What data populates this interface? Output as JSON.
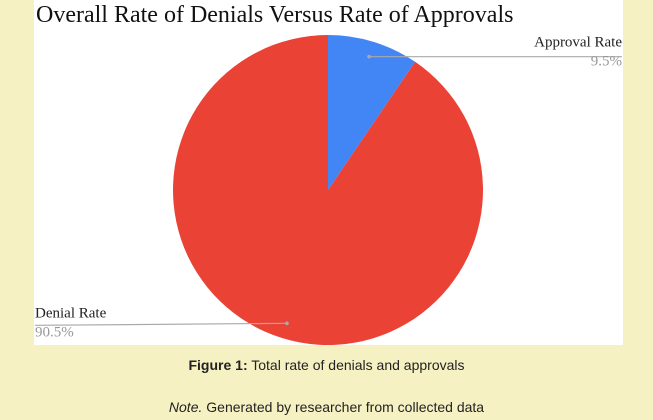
{
  "chart_data": {
    "type": "pie",
    "title": "Overall Rate of Denials Versus Rate of Approvals",
    "categories": [
      "Approval Rate",
      "Denial Rate"
    ],
    "values": [
      9.5,
      90.5
    ],
    "value_labels": [
      "9.5%",
      "90.5%"
    ],
    "colors": [
      "#4285f4",
      "#ea4335"
    ]
  },
  "caption": {
    "label": "Figure 1:",
    "text": "Total rate of denials and approvals"
  },
  "note": {
    "label": "Note.",
    "text": "Generated by researcher from collected data"
  }
}
